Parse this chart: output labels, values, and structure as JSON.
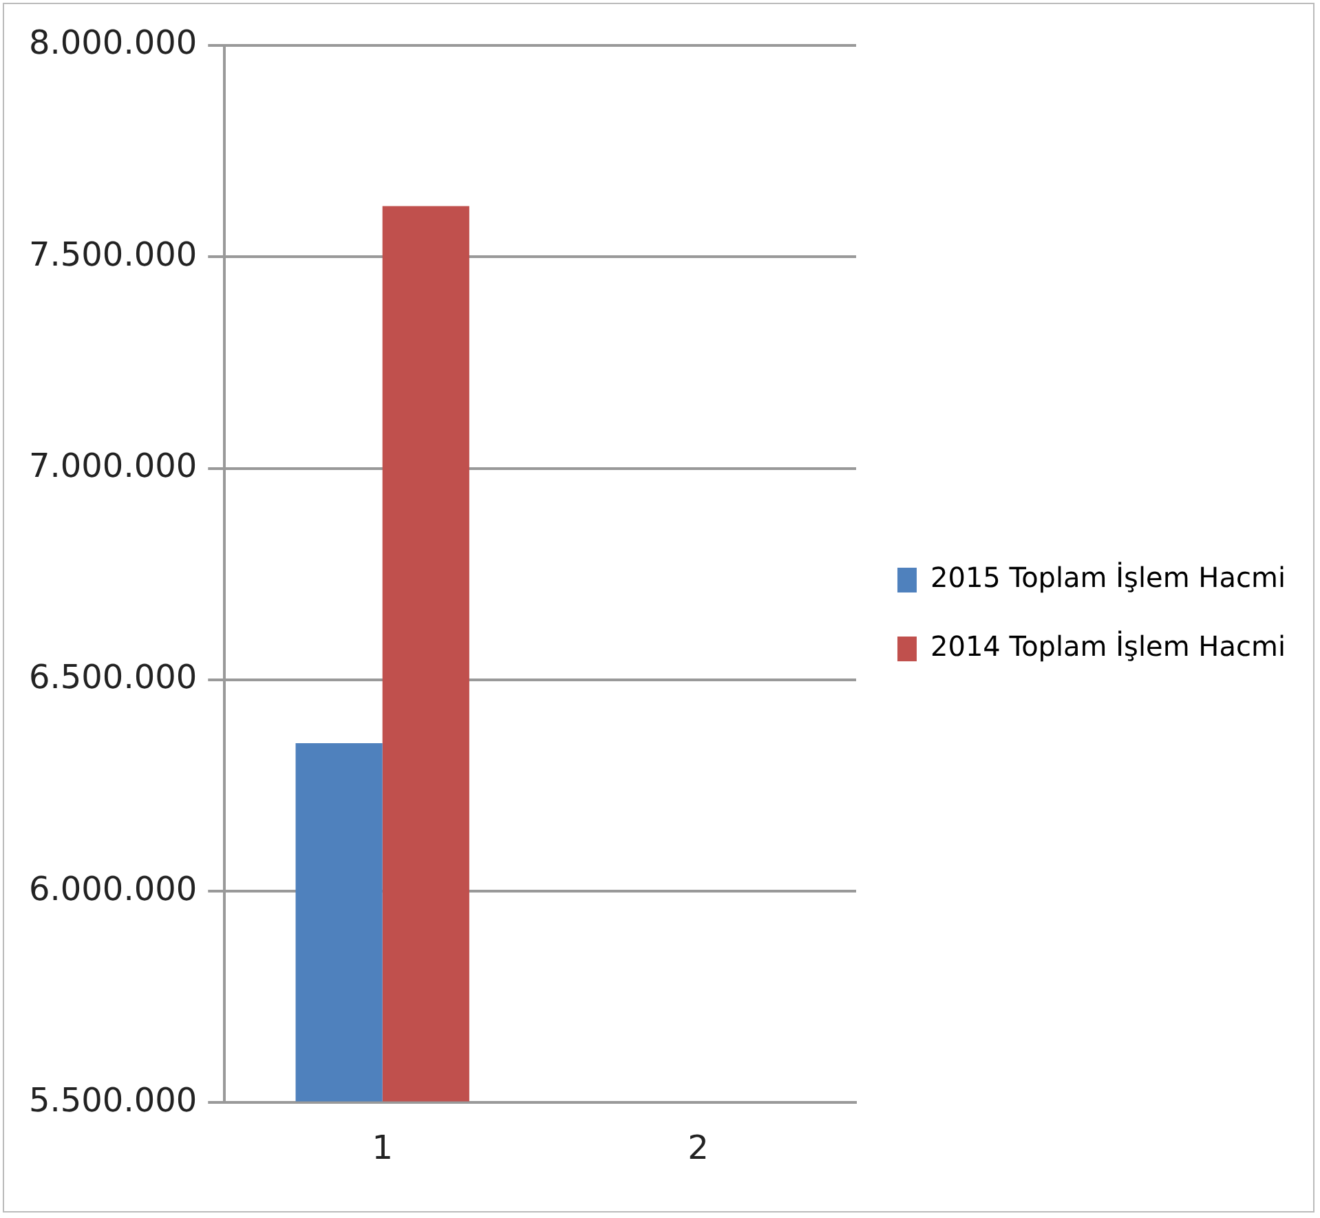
{
  "chart_data": {
    "type": "bar",
    "categories": [
      "1",
      "2"
    ],
    "series": [
      {
        "name": "2015 Toplam İşlem Hacmi",
        "color": "#4f81bd",
        "values": [
          6350000,
          null
        ]
      },
      {
        "name": "2014 Toplam İşlem Hacmi",
        "color": "#c0504d",
        "values": [
          7620000,
          null
        ]
      }
    ],
    "ylim": [
      5500000,
      8000000
    ],
    "yticks": [
      {
        "value": 5500000,
        "label": "5.500.000"
      },
      {
        "value": 6000000,
        "label": "6.000.000"
      },
      {
        "value": 6500000,
        "label": "6.500.000"
      },
      {
        "value": 7000000,
        "label": "7.000.000"
      },
      {
        "value": 7500000,
        "label": "7.500.000"
      },
      {
        "value": 8000000,
        "label": "8.000.000"
      }
    ],
    "grid": "y",
    "legend": "right"
  }
}
